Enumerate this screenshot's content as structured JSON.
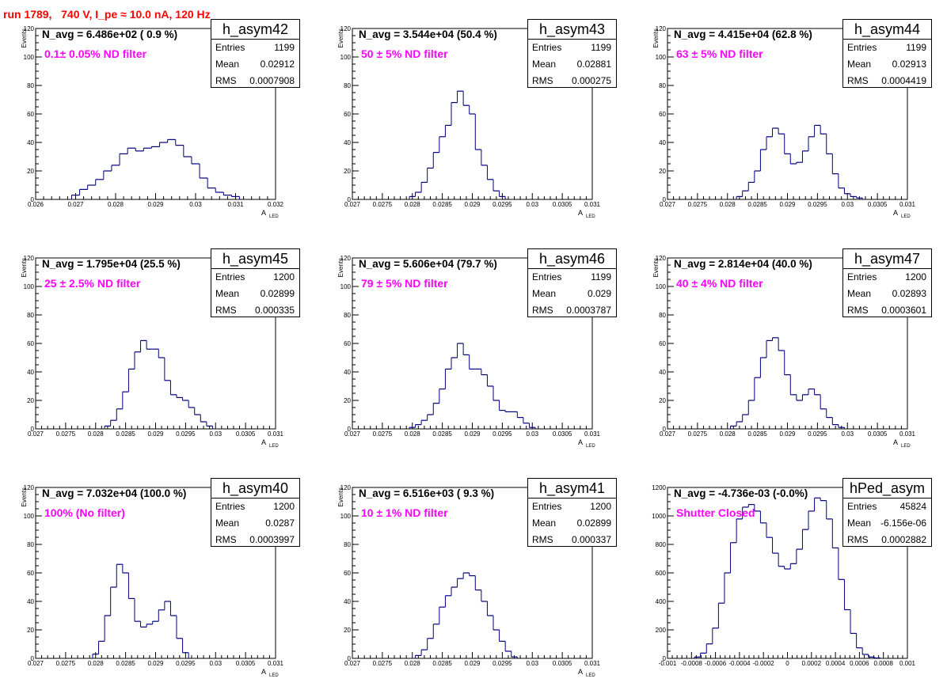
{
  "header": "run 1789,   740 V, I_pe ≈ 10.0 nA, 120 Hz",
  "y_axis_label": "Events",
  "x_axis_label": "A",
  "x_axis_sub": "LED",
  "stat_labels": {
    "entries": "Entries",
    "mean": "Mean",
    "rms": "RMS"
  },
  "panels": [
    {
      "hist": "h_asym42",
      "entries": "1199",
      "mean": "0.02912",
      "rms": "0.0007908",
      "navg": "N_avg = 6.486e+02 ( 0.9 %)",
      "filter": "0.1± 0.05% ND filter"
    },
    {
      "hist": "h_asym43",
      "entries": "1199",
      "mean": "0.02881",
      "rms": "0.000275",
      "navg": "N_avg = 3.544e+04 (50.4 %)",
      "filter": "50 ± 5% ND filter"
    },
    {
      "hist": "h_asym44",
      "entries": "1199",
      "mean": "0.02913",
      "rms": "0.0004419",
      "navg": "N_avg = 4.415e+04 (62.8 %)",
      "filter": "63 ± 5% ND filter"
    },
    {
      "hist": "h_asym45",
      "entries": "1200",
      "mean": "0.02899",
      "rms": "0.000335",
      "navg": "N_avg = 1.795e+04 (25.5 %)",
      "filter": "25 ± 2.5% ND filter"
    },
    {
      "hist": "h_asym46",
      "entries": "1199",
      "mean": "0.029",
      "rms": "0.0003787",
      "navg": "N_avg = 5.606e+04 (79.7 %)",
      "filter": "79 ± 5% ND filter"
    },
    {
      "hist": "h_asym47",
      "entries": "1200",
      "mean": "0.02893",
      "rms": "0.0003601",
      "navg": "N_avg = 2.814e+04 (40.0 %)",
      "filter": "40 ± 4% ND filter"
    },
    {
      "hist": "h_asym40",
      "entries": "1200",
      "mean": "0.0287",
      "rms": "0.0003997",
      "navg": "N_avg = 7.032e+04 (100.0 %)",
      "filter": "100% (No filter)"
    },
    {
      "hist": "h_asym41",
      "entries": "1200",
      "mean": "0.02899",
      "rms": "0.000337",
      "navg": "N_avg = 6.516e+03 ( 9.3 %)",
      "filter": "10 ± 1% ND filter"
    },
    {
      "hist": "hPed_asym",
      "entries": "45824",
      "mean": "-6.156e-06",
      "rms": "0.0002882",
      "navg": "N_avg = -4.736e-03 (-0.0%)",
      "filter": "Shutter Closed"
    }
  ],
  "chart_data": [
    {
      "type": "histogram",
      "title": "h_asym42",
      "ylabel": "Events",
      "xlabel": "A_LED",
      "line_color": "#000080",
      "xlim": [
        0.026,
        0.032
      ],
      "ylim": [
        0,
        120
      ],
      "xticks": [
        "0.026",
        "0.027",
        "0.028",
        "0.029",
        "0.03",
        "0.031",
        "0.032"
      ],
      "yticks": [
        "0",
        "20",
        "40",
        "60",
        "80",
        "100",
        "120"
      ],
      "x": [
        0.027,
        0.0272,
        0.0274,
        0.0276,
        0.0278,
        0.028,
        0.0282,
        0.0284,
        0.0286,
        0.0288,
        0.029,
        0.0292,
        0.0294,
        0.0296,
        0.0298,
        0.03,
        0.0302,
        0.0304,
        0.0306,
        0.0308,
        0.031
      ],
      "values": [
        3,
        7,
        10,
        14,
        20,
        24,
        32,
        36,
        34,
        36,
        37,
        40,
        42,
        38,
        30,
        25,
        15,
        8,
        5,
        3,
        2
      ]
    },
    {
      "type": "histogram",
      "title": "h_asym43",
      "ylabel": "Events",
      "xlabel": "A_LED",
      "line_color": "#000080",
      "xlim": [
        0.027,
        0.031
      ],
      "ylim": [
        0,
        120
      ],
      "xticks": [
        "0.027",
        "0.0275",
        "0.028",
        "0.0285",
        "0.029",
        "0.0295",
        "0.03",
        "0.0305",
        "0.031"
      ],
      "yticks": [
        "0",
        "20",
        "40",
        "60",
        "80",
        "100",
        "120"
      ],
      "x": [
        0.028,
        0.0281,
        0.0282,
        0.0283,
        0.0284,
        0.0285,
        0.0286,
        0.0287,
        0.0288,
        0.0289,
        0.029,
        0.0291,
        0.0292,
        0.0293,
        0.0294,
        0.0295
      ],
      "values": [
        2,
        5,
        12,
        22,
        33,
        44,
        52,
        68,
        76,
        66,
        60,
        35,
        24,
        14,
        6,
        2
      ]
    },
    {
      "type": "histogram",
      "title": "h_asym44",
      "ylabel": "Events",
      "xlabel": "A_LED",
      "line_color": "#000080",
      "xlim": [
        0.027,
        0.031
      ],
      "ylim": [
        0,
        120
      ],
      "xticks": [
        "0.027",
        "0.0275",
        "0.028",
        "0.0285",
        "0.029",
        "0.0295",
        "0.03",
        "0.0305",
        "0.031"
      ],
      "yticks": [
        "0",
        "20",
        "40",
        "60",
        "80",
        "100",
        "120"
      ],
      "x": [
        0.0282,
        0.0283,
        0.0284,
        0.0285,
        0.0286,
        0.0287,
        0.0288,
        0.0289,
        0.029,
        0.0291,
        0.0292,
        0.0293,
        0.0294,
        0.0295,
        0.0296,
        0.0297,
        0.0298,
        0.0299,
        0.03,
        0.0301,
        0.0302
      ],
      "values": [
        2,
        6,
        12,
        20,
        35,
        44,
        50,
        46,
        32,
        25,
        26,
        34,
        44,
        52,
        46,
        32,
        18,
        8,
        4,
        2,
        1
      ]
    },
    {
      "type": "histogram",
      "title": "h_asym45",
      "ylabel": "Events",
      "xlabel": "A_LED",
      "line_color": "#000080",
      "xlim": [
        0.027,
        0.031
      ],
      "ylim": [
        0,
        120
      ],
      "xticks": [
        "0.027",
        "0.0275",
        "0.028",
        "0.0285",
        "0.029",
        "0.0295",
        "0.03",
        "0.0305",
        "0.031"
      ],
      "yticks": [
        "0",
        "20",
        "40",
        "60",
        "80",
        "100",
        "120"
      ],
      "x": [
        0.0282,
        0.0283,
        0.0284,
        0.0285,
        0.0286,
        0.0287,
        0.0288,
        0.0289,
        0.029,
        0.0291,
        0.0292,
        0.0293,
        0.0294,
        0.0295,
        0.0296,
        0.0297,
        0.0298,
        0.0299
      ],
      "values": [
        2,
        6,
        14,
        26,
        42,
        54,
        62,
        56,
        56,
        50,
        34,
        24,
        22,
        20,
        15,
        10,
        5,
        2
      ]
    },
    {
      "type": "histogram",
      "title": "h_asym46",
      "ylabel": "Events",
      "xlabel": "A_LED",
      "line_color": "#000080",
      "xlim": [
        0.027,
        0.031
      ],
      "ylim": [
        0,
        120
      ],
      "xticks": [
        "0.027",
        "0.0275",
        "0.028",
        "0.0285",
        "0.029",
        "0.0295",
        "0.03",
        "0.0305",
        "0.031"
      ],
      "yticks": [
        "0",
        "20",
        "40",
        "60",
        "80",
        "100",
        "120"
      ],
      "x": [
        0.028,
        0.0281,
        0.0282,
        0.0283,
        0.0284,
        0.0285,
        0.0286,
        0.0287,
        0.0288,
        0.0289,
        0.029,
        0.0291,
        0.0292,
        0.0293,
        0.0294,
        0.0295,
        0.0296,
        0.0297,
        0.0298,
        0.0299,
        0.03
      ],
      "values": [
        1,
        3,
        6,
        10,
        18,
        28,
        42,
        50,
        60,
        52,
        42,
        42,
        38,
        30,
        20,
        13,
        12,
        12,
        8,
        4,
        1
      ]
    },
    {
      "type": "histogram",
      "title": "h_asym47",
      "ylabel": "Events",
      "xlabel": "A_LED",
      "line_color": "#000080",
      "xlim": [
        0.027,
        0.031
      ],
      "ylim": [
        0,
        120
      ],
      "xticks": [
        "0.027",
        "0.0275",
        "0.028",
        "0.0285",
        "0.029",
        "0.0295",
        "0.03",
        "0.0305",
        "0.031"
      ],
      "yticks": [
        "0",
        "20",
        "40",
        "60",
        "80",
        "100",
        "120"
      ],
      "x": [
        0.0281,
        0.0282,
        0.0283,
        0.0284,
        0.0285,
        0.0286,
        0.0287,
        0.0288,
        0.0289,
        0.029,
        0.0291,
        0.0292,
        0.0293,
        0.0294,
        0.0295,
        0.0296,
        0.0297,
        0.0298,
        0.0299
      ],
      "values": [
        2,
        5,
        10,
        20,
        36,
        50,
        62,
        64,
        55,
        38,
        24,
        20,
        24,
        28,
        24,
        14,
        8,
        3,
        1
      ]
    },
    {
      "type": "histogram",
      "title": "h_asym40",
      "ylabel": "Events",
      "xlabel": "A_LED",
      "line_color": "#000080",
      "xlim": [
        0.027,
        0.031
      ],
      "ylim": [
        0,
        120
      ],
      "xticks": [
        "0.027",
        "0.0275",
        "0.028",
        "0.0285",
        "0.029",
        "0.0295",
        "0.03",
        "0.0305",
        "0.031"
      ],
      "yticks": [
        "0",
        "20",
        "40",
        "60",
        "80",
        "100",
        "120"
      ],
      "x": [
        0.028,
        0.0281,
        0.0282,
        0.0283,
        0.0284,
        0.0285,
        0.0286,
        0.0287,
        0.0288,
        0.0289,
        0.029,
        0.0291,
        0.0292,
        0.0293,
        0.0294,
        0.0295
      ],
      "values": [
        3,
        12,
        30,
        50,
        66,
        60,
        42,
        26,
        22,
        24,
        26,
        34,
        40,
        30,
        14,
        4
      ]
    },
    {
      "type": "histogram",
      "title": "h_asym41",
      "ylabel": "Events",
      "xlabel": "A_LED",
      "line_color": "#000080",
      "xlim": [
        0.027,
        0.031
      ],
      "ylim": [
        0,
        120
      ],
      "xticks": [
        "0.027",
        "0.0275",
        "0.028",
        "0.0285",
        "0.029",
        "0.0295",
        "0.03",
        "0.0305",
        "0.031"
      ],
      "yticks": [
        "0",
        "20",
        "40",
        "60",
        "80",
        "100",
        "120"
      ],
      "x": [
        0.0281,
        0.0282,
        0.0283,
        0.0284,
        0.0285,
        0.0286,
        0.0287,
        0.0288,
        0.0289,
        0.029,
        0.0291,
        0.0292,
        0.0293,
        0.0294,
        0.0295,
        0.0296,
        0.0297
      ],
      "values": [
        2,
        6,
        14,
        24,
        36,
        44,
        50,
        56,
        60,
        58,
        48,
        40,
        30,
        20,
        12,
        5,
        1
      ]
    },
    {
      "type": "histogram",
      "title": "hPed_asym",
      "ylabel": "",
      "xlabel": "",
      "line_color": "#000080",
      "xlim": [
        -0.001,
        0.001
      ],
      "ylim": [
        0,
        1300
      ],
      "xticks": [
        "-0.001",
        "-0.0008",
        "-0.0006",
        "-0.0004",
        "-0.0002",
        "0",
        "0.0002",
        "0.0004",
        "0.0006",
        "0.0008",
        "0.001"
      ],
      "yticks": [
        "0",
        "200",
        "400",
        "600",
        "800",
        "1000",
        "1200"
      ],
      "x": [
        -0.00075,
        -0.0007,
        -0.00065,
        -0.0006,
        -0.00055,
        -0.0005,
        -0.00045,
        -0.0004,
        -0.00035,
        -0.0003,
        -0.00025,
        -0.0002,
        -0.00015,
        -0.0001,
        -5e-05,
        0.0,
        5e-05,
        0.0001,
        0.00015,
        0.0002,
        0.00025,
        0.0003,
        0.00035,
        0.0004,
        0.00045,
        0.0005,
        0.00055,
        0.0006,
        0.00065,
        0.0007,
        0.00075
      ],
      "values": [
        10,
        40,
        110,
        230,
        420,
        650,
        880,
        1060,
        1150,
        1170,
        1120,
        1030,
        920,
        800,
        700,
        680,
        720,
        830,
        980,
        1120,
        1220,
        1200,
        1060,
        840,
        600,
        370,
        190,
        80,
        30,
        10,
        3
      ]
    }
  ]
}
